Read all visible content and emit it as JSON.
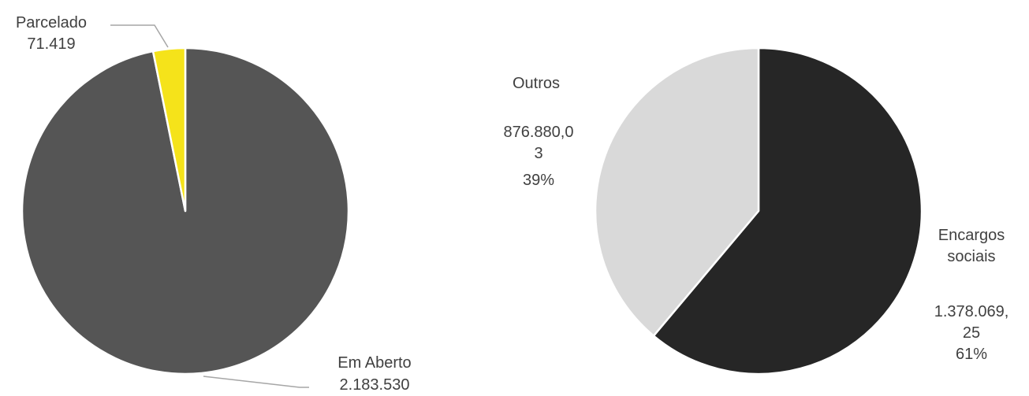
{
  "chart_data": [
    {
      "type": "pie",
      "categories": [
        "Em Aberto",
        "Parcelado"
      ],
      "values": [
        2183530,
        71419
      ],
      "value_labels": [
        "2.183.530",
        "71.419"
      ],
      "colors": [
        "#555555",
        "#f5e31a"
      ]
    },
    {
      "type": "pie",
      "categories": [
        "Encargos sociais",
        "Outros"
      ],
      "values": [
        1378069.25,
        876880.03
      ],
      "value_labels": [
        "1.378.069,25",
        "876.880,03"
      ],
      "percents": [
        61,
        39
      ],
      "percent_labels": [
        "61%",
        "39%"
      ],
      "colors": [
        "#262626",
        "#d9d9d9"
      ]
    }
  ]
}
